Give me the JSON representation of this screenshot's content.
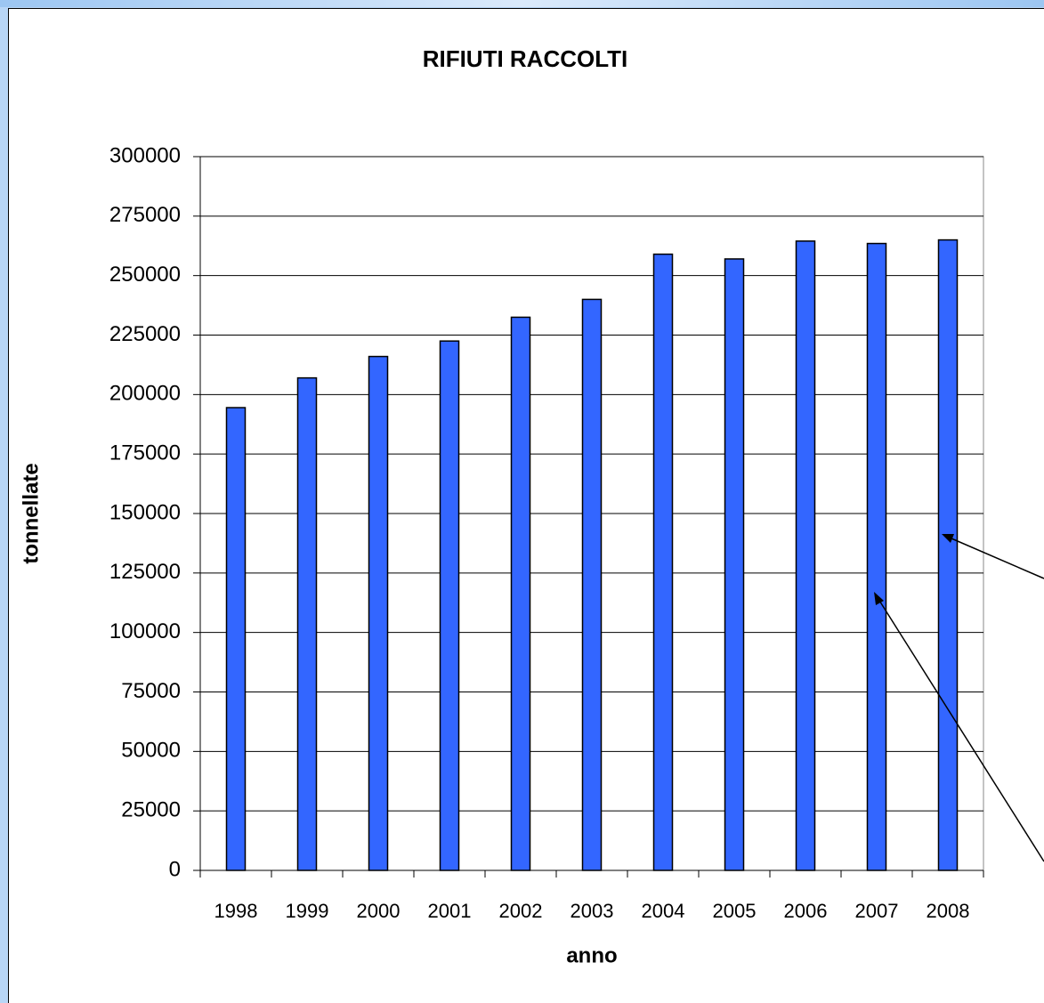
{
  "chart_data": {
    "type": "bar",
    "title": "RIFIUTI RACCOLTI",
    "x_label": "anno",
    "y_label": "tonnellate",
    "categories": [
      "1998",
      "1999",
      "2000",
      "2001",
      "2002",
      "2003",
      "2004",
      "2005",
      "2006",
      "2007",
      "2008"
    ],
    "values": [
      194500,
      207000,
      216000,
      222500,
      232500,
      240000,
      259000,
      257000,
      264500,
      263500,
      265000
    ],
    "color": "#3366ff",
    "ylim": [
      0,
      300000
    ],
    "yticks": [
      0,
      25000,
      50000,
      75000,
      100000,
      125000,
      150000,
      175000,
      200000,
      225000,
      250000,
      275000,
      300000
    ],
    "grid": true
  }
}
